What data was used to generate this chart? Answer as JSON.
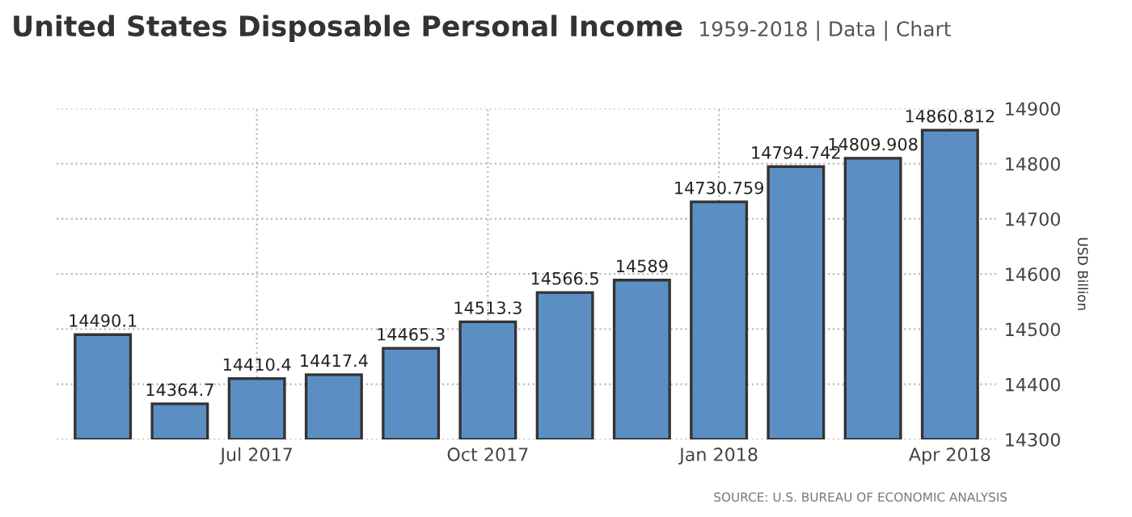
{
  "chart_data": {
    "type": "bar",
    "title": "United States Disposable Personal Income",
    "subtitle": "1959-2018 | Data | Chart",
    "ylabel": "USD Billion",
    "categories": [
      null,
      null,
      "Jul 2017",
      null,
      null,
      "Oct 2017",
      null,
      null,
      "Jan 2018",
      null,
      null,
      "Apr 2018"
    ],
    "values": [
      14490.1,
      14364.7,
      14410.4,
      14417.4,
      14465.3,
      14513.3,
      14566.5,
      14589,
      14730.759,
      14794.742,
      14809.908,
      14860.812
    ],
    "color": "#5b8fc4",
    "ylim": [
      14300,
      14900
    ],
    "yticks": [
      14300,
      14400,
      14500,
      14600,
      14700,
      14800,
      14900
    ],
    "grid": true,
    "data_labels": true,
    "annotations": [
      "SOURCE: U.S. BUREAU OF ECONOMIC ANALYSIS"
    ]
  }
}
